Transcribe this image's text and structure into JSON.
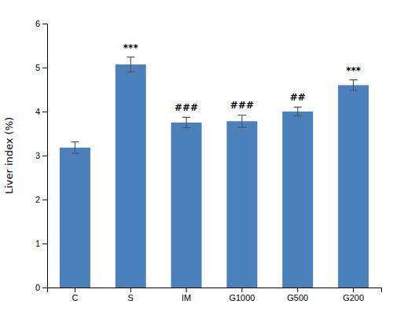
{
  "chart_data": {
    "type": "bar",
    "categories": [
      "C",
      "S",
      "IM",
      "G1000",
      "G500",
      "G200"
    ],
    "values": [
      3.18,
      5.07,
      3.75,
      3.78,
      4.0,
      4.6
    ],
    "errors": [
      0.13,
      0.17,
      0.12,
      0.14,
      0.1,
      0.12
    ],
    "color": "#4a80bb",
    "ylabel": "Liver index (%)",
    "ylim": [
      0,
      6
    ],
    "yticks": [
      0,
      1,
      2,
      3,
      4,
      5,
      6
    ],
    "grid": false,
    "annotations": [
      {
        "category": "S",
        "text": "***"
      },
      {
        "category": "IM",
        "text": "###"
      },
      {
        "category": "G1000",
        "text": "###"
      },
      {
        "category": "G500",
        "text": "##"
      },
      {
        "category": "G200",
        "text": "***"
      }
    ]
  }
}
